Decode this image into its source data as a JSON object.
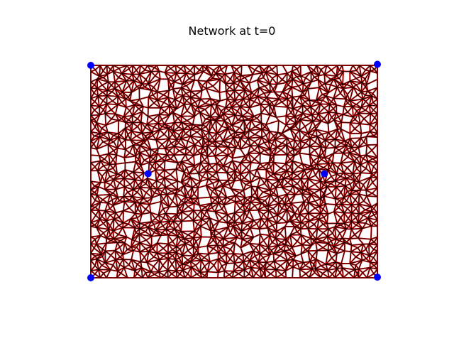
{
  "title": "Network at t=0",
  "colors": {
    "background": "#ffffff",
    "edge_outer": "#cc0000",
    "edge_inner": "#000000",
    "node": "#0000ff"
  },
  "network": {
    "x_range": [
      0,
      1
    ],
    "y_range": [
      0,
      1
    ],
    "grid_cols": 34,
    "grid_rows": 26,
    "hole_fraction": 0.18,
    "highlighted_nodes": [
      {
        "id": "corner-top-left",
        "x": 0.0,
        "y": 1.0
      },
      {
        "id": "corner-top-right",
        "x": 1.0,
        "y": 1.005
      },
      {
        "id": "corner-bottom-left",
        "x": 0.0,
        "y": 0.0
      },
      {
        "id": "corner-bottom-right",
        "x": 1.0,
        "y": 0.003
      },
      {
        "id": "interior-left",
        "x": 0.2,
        "y": 0.49
      },
      {
        "id": "interior-right",
        "x": 0.815,
        "y": 0.49
      }
    ]
  }
}
